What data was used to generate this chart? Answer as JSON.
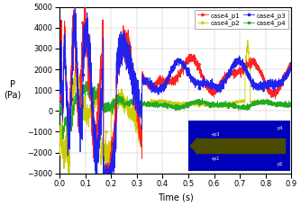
{
  "title": "",
  "xlabel": "Time (s)",
  "ylabel": "P\n(Pa)",
  "xlim": [
    0,
    0.9
  ],
  "ylim": [
    -3000,
    5000
  ],
  "yticks": [
    -3000,
    -2000,
    -1000,
    0,
    1000,
    2000,
    3000,
    4000,
    5000
  ],
  "xticks": [
    0.0,
    0.1,
    0.2,
    0.3,
    0.4,
    0.5,
    0.6,
    0.7,
    0.8,
    0.9
  ],
  "legend_labels": [
    "case4_p1",
    "case4_p2",
    "case4_p3",
    "case4_p4"
  ],
  "colors": {
    "p1": "#FF2222",
    "p2": "#CCCC00",
    "p3": "#2222EE",
    "p4": "#22AA22"
  },
  "inset": {
    "bg_color": "#0000BB",
    "bar_color": "#4A4A00"
  },
  "figsize": [
    3.34,
    2.29
  ],
  "dpi": 100
}
